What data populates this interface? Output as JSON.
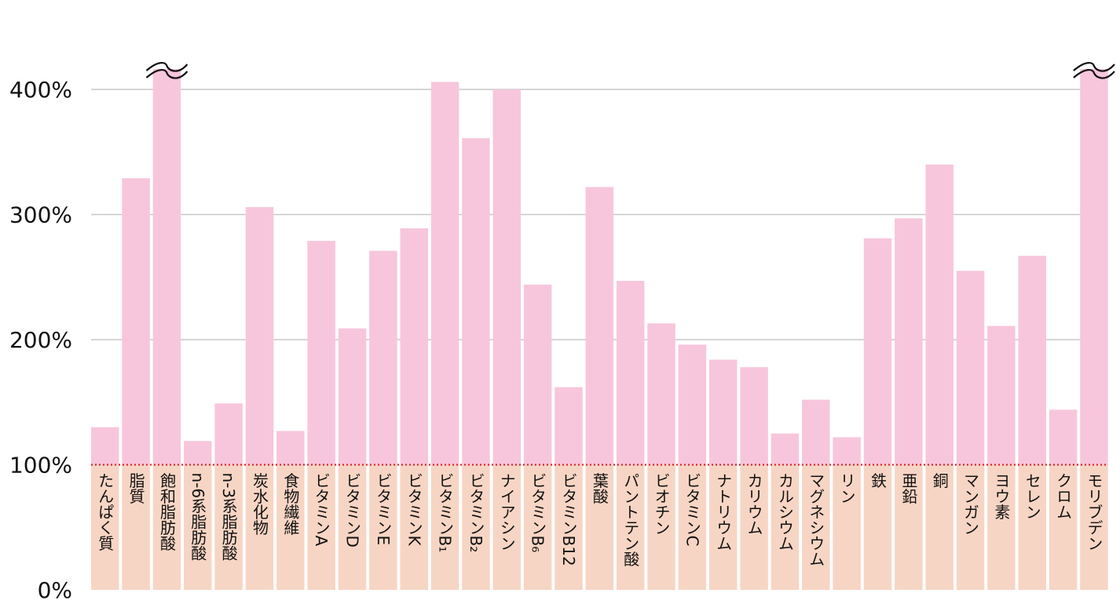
{
  "chart_data": {
    "type": "bar",
    "title": "",
    "xlabel": "",
    "ylabel": "",
    "ylim": [
      0,
      400
    ],
    "y_ticks": [
      {
        "value": 0,
        "label": "0%"
      },
      {
        "value": 100,
        "label": "100%"
      },
      {
        "value": 200,
        "label": "200%"
      },
      {
        "value": 300,
        "label": "300%"
      },
      {
        "value": 400,
        "label": "400%"
      }
    ],
    "grid": true,
    "reference_line": {
      "value": 100,
      "style": "dotted",
      "color": "#e0262b"
    },
    "colors": {
      "bar": "#f7c6dc",
      "below_reference": "#f7d5c4",
      "grid": "#c8c8c8"
    },
    "broken_bars": [
      "飽和脂肪酸",
      "モリブデン"
    ],
    "categories": [
      "たんぱく質",
      "脂質",
      "飽和脂肪酸",
      "n-6系脂肪酸",
      "n-3系脂肪酸",
      "炭水化物",
      "食物繊維",
      "ビタミンA",
      "ビタミンD",
      "ビタミンE",
      "ビタミンK",
      "ビタミンB1",
      "ビタミンB2",
      "ナイアシン",
      "ビタミンB6",
      "ビタミンB12",
      "葉酸",
      "パントテン酸",
      "ビオチン",
      "ビタミンC",
      "ナトリウム",
      "カリウム",
      "カルシウム",
      "マグネシウム",
      "リン",
      "鉄",
      "亜鉛",
      "銅",
      "マンガン",
      "ヨウ素",
      "セレン",
      "クロム",
      "モリブデン"
    ],
    "category_labels_rendered": [
      "たんぱく質",
      "脂質",
      "飽和脂肪酸",
      "n-6系脂肪酸",
      "n-3系脂肪酸",
      "炭水化物",
      "食物繊維",
      "ビタミンA",
      "ビタミンD",
      "ビタミンE",
      "ビタミンK",
      "ビタミンB₁",
      "ビタミンB₂",
      "ナイアシン",
      "ビタミンB₆",
      "ビタミンB12",
      "葉酸",
      "パントテン酸",
      "ビオチン",
      "ビタミンC",
      "ナトリウム",
      "カリウム",
      "カルシウム",
      "マグネシウム",
      "リン",
      "鉄",
      "亜鉛",
      "銅",
      "マンガン",
      "ヨウ素",
      "セレン",
      "クロム",
      "モリブデン"
    ],
    "values": [
      130,
      329,
      420,
      119,
      149,
      306,
      127,
      279,
      209,
      271,
      289,
      406,
      361,
      400,
      244,
      162,
      322,
      247,
      213,
      196,
      184,
      178,
      125,
      152,
      122,
      281,
      297,
      340,
      255,
      211,
      267,
      144,
      420
    ]
  }
}
